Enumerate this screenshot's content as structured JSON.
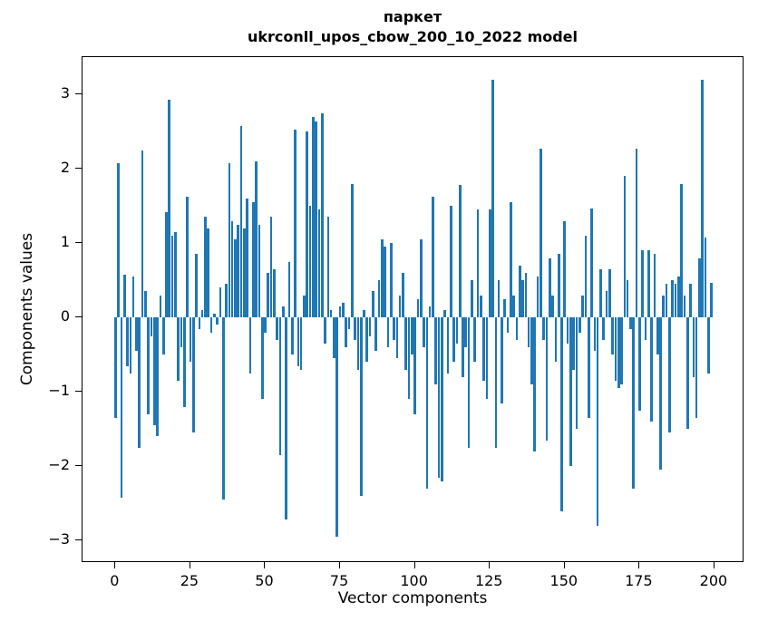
{
  "chart_data": {
    "type": "bar",
    "title": "паркет",
    "subtitle": "ukrconll_upos_cbow_200_10_2022 model",
    "xlabel": "Vector components",
    "ylabel": "Components values",
    "color": "#1f77b4",
    "xlim": [
      -11,
      210
    ],
    "ylim": [
      -3.3,
      3.5
    ],
    "grid": false,
    "legend": "none",
    "yticks": [
      {
        "label": "3",
        "value": 3
      },
      {
        "label": "2",
        "value": 2
      },
      {
        "label": "1",
        "value": 1
      },
      {
        "label": "0",
        "value": 0
      },
      {
        "label": "−1",
        "value": -1
      },
      {
        "label": "−2",
        "value": -2
      },
      {
        "label": "−3",
        "value": -3
      }
    ],
    "xticks": [
      {
        "label": "0",
        "value": 0
      },
      {
        "label": "25",
        "value": 25
      },
      {
        "label": "50",
        "value": 50
      },
      {
        "label": "75",
        "value": 75
      },
      {
        "label": "100",
        "value": 100
      },
      {
        "label": "125",
        "value": 125
      },
      {
        "label": "150",
        "value": 150
      },
      {
        "label": "175",
        "value": 175
      },
      {
        "label": "200",
        "value": 200
      }
    ],
    "x_start": 0,
    "values": [
      -1.35,
      2.07,
      -2.42,
      0.57,
      -0.65,
      -0.75,
      0.55,
      -0.45,
      -1.75,
      2.25,
      0.35,
      -1.3,
      -0.25,
      -1.45,
      -1.6,
      0.3,
      -0.5,
      1.42,
      2.93,
      1.1,
      1.15,
      -0.85,
      -0.4,
      -1.2,
      1.62,
      -0.6,
      -1.55,
      0.85,
      -0.15,
      0.1,
      1.35,
      1.2,
      -0.2,
      0.05,
      -0.1,
      0.4,
      -2.45,
      0.45,
      2.08,
      1.3,
      1.05,
      1.25,
      2.57,
      1.2,
      1.6,
      -0.75,
      1.55,
      2.1,
      1.25,
      -1.1,
      -0.2,
      0.6,
      1.35,
      0.65,
      -0.3,
      -1.85,
      0.15,
      -2.72,
      0.75,
      -0.5,
      2.53,
      -0.65,
      -0.7,
      0.3,
      2.5,
      1.5,
      2.7,
      2.63,
      1.45,
      2.75,
      -0.35,
      1.35,
      0.1,
      -0.55,
      -2.95,
      0.15,
      0.2,
      -0.4,
      -0.15,
      1.8,
      -0.3,
      -0.7,
      -2.4,
      0.1,
      -0.6,
      -0.25,
      0.35,
      -0.45,
      0.5,
      1.05,
      0.95,
      -0.4,
      1.0,
      -0.3,
      -0.55,
      0.3,
      0.6,
      -0.7,
      -1.1,
      -0.5,
      -1.3,
      0.25,
      1.05,
      -0.4,
      -2.3,
      0.15,
      1.62,
      -0.9,
      -2.15,
      -2.2,
      0.1,
      -0.75,
      1.5,
      -0.6,
      -0.35,
      1.78,
      -0.8,
      -0.4,
      -1.75,
      0.5,
      -0.6,
      1.45,
      0.3,
      -0.85,
      -1.1,
      1.45,
      3.2,
      -1.75,
      0.5,
      -1.15,
      0.25,
      -0.2,
      1.55,
      0.3,
      -0.3,
      0.7,
      0.5,
      0.6,
      -0.4,
      -0.9,
      -1.8,
      0.55,
      2.27,
      -0.3,
      -1.65,
      0.8,
      0.3,
      -0.6,
      0.85,
      -2.6,
      1.3,
      -0.35,
      -2.0,
      -0.7,
      -1.5,
      -0.2,
      0.3,
      1.1,
      -1.35,
      1.47,
      -0.45,
      -2.8,
      0.65,
      -0.3,
      0.35,
      0.65,
      -0.5,
      -0.85,
      -0.95,
      -0.9,
      1.9,
      0.5,
      -0.15,
      -2.3,
      2.27,
      -1.25,
      0.9,
      -0.3,
      0.9,
      -1.4,
      0.85,
      -0.5,
      -2.05,
      0.3,
      0.45,
      -1.55,
      0.5,
      0.45,
      0.55,
      1.8,
      0.3,
      -1.5,
      0.45,
      -0.8,
      -1.35,
      0.8,
      3.2,
      1.07,
      -0.75,
      0.47
    ]
  }
}
